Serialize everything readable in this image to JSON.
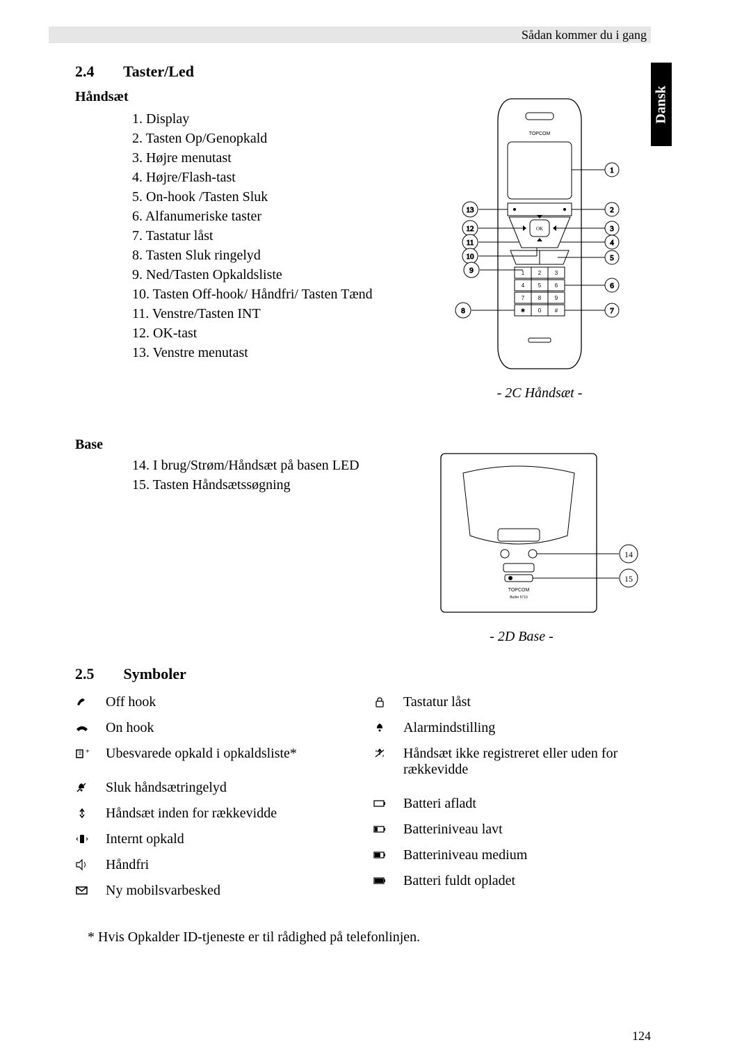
{
  "header": {
    "running_title": "Sådan kommer du i gang"
  },
  "side_tab": "Dansk",
  "section24": {
    "number": "2.4",
    "title": "Taster/Led",
    "handset_label": "Håndsæt",
    "handset_items": [
      "1.  Display",
      "2.  Tasten Op/Genopkald",
      "3.  Højre menutast",
      "4.  Højre/Flash-tast",
      "5.  On-hook /Tasten Sluk",
      "6.  Alfanumeriske taster",
      "7.  Tastatur låst",
      "8.  Tasten Sluk ringelyd",
      "9.  Ned/Tasten Opkaldsliste",
      "10. Tasten Off-hook/ Håndfri/ Tasten Tænd",
      "11. Venstre/Tasten INT",
      "12. OK-tast",
      "13. Venstre menutast"
    ],
    "handset_caption": "- 2C Håndsæt -",
    "base_label": "Base",
    "base_items": [
      "14. I brug/Strøm/Håndsæt på basen LED",
      "15. Tasten Håndsætssøgning"
    ],
    "base_caption": "- 2D Base -"
  },
  "section25": {
    "number": "2.5",
    "title": "Symboler",
    "left": [
      "Off hook",
      "On hook",
      "Ubesvarede opkald i opkaldsliste*",
      "Sluk håndsætringelyd",
      "Håndsæt inden for rækkevidde",
      "Internt opkald",
      "Håndfri",
      "Ny mobilsvarbesked"
    ],
    "right": [
      "Tastatur låst",
      "Alarmindstilling",
      "Håndsæt ikke registreret eller uden for rækkevidde",
      "Batteri afladt",
      "Batteriniveau lavt",
      "Batteriniveau medium",
      "Batteri fuldt opladet"
    ],
    "footnote": "* Hvis Opkalder ID-tjeneste er til rådighed på telefonlinjen."
  },
  "page_number": "124",
  "device_brand": "TOPCOM",
  "base_model": "Butler 5710",
  "callouts_right": [
    "1",
    "2",
    "3",
    "4",
    "5",
    "6",
    "7"
  ],
  "callouts_left_upper": [
    "13",
    "12",
    "11",
    "10",
    "9"
  ],
  "callout_left_lower": "8",
  "base_callouts": [
    "14",
    "15"
  ],
  "colors": {
    "header_bg": "#e6e6e6",
    "tab_bg": "#000000",
    "tab_fg": "#ffffff",
    "line": "#000000"
  }
}
